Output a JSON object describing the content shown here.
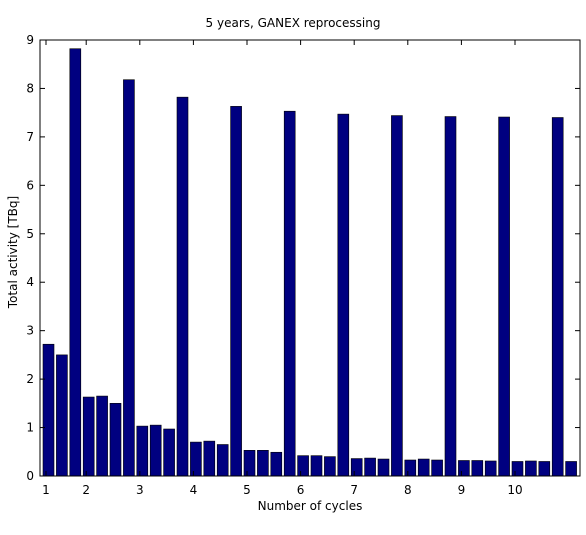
{
  "chart_data": {
    "type": "bar",
    "title": "5 years, GANEX reprocessing",
    "xlabel": "Number of cycles",
    "ylabel": "Total activity [TBq]",
    "ylim": [
      0,
      9
    ],
    "yticks": [
      0,
      1,
      2,
      3,
      4,
      5,
      6,
      7,
      8,
      9
    ],
    "xticks": [
      1,
      2,
      3,
      4,
      5,
      6,
      7,
      8,
      9,
      10
    ],
    "grid": false,
    "bar_color": "#000080",
    "cycles": [
      {
        "cycle": 1,
        "values": [
          2.72,
          2.5,
          8.82
        ]
      },
      {
        "cycle": 2,
        "values": [
          1.63,
          1.65,
          1.5,
          8.18
        ]
      },
      {
        "cycle": 3,
        "values": [
          1.03,
          1.05,
          0.97,
          7.82
        ]
      },
      {
        "cycle": 4,
        "values": [
          0.7,
          0.72,
          0.65,
          7.63
        ]
      },
      {
        "cycle": 5,
        "values": [
          0.53,
          0.53,
          0.49,
          7.53
        ]
      },
      {
        "cycle": 6,
        "values": [
          0.42,
          0.42,
          0.4,
          7.47
        ]
      },
      {
        "cycle": 7,
        "values": [
          0.36,
          0.37,
          0.35,
          7.44
        ]
      },
      {
        "cycle": 8,
        "values": [
          0.33,
          0.35,
          0.33,
          7.42
        ]
      },
      {
        "cycle": 9,
        "values": [
          0.32,
          0.32,
          0.31,
          7.41
        ]
      },
      {
        "cycle": 10,
        "values": [
          0.3,
          0.31,
          0.3,
          7.4
        ]
      },
      {
        "cycle": 11,
        "values": [
          0.3
        ]
      }
    ]
  }
}
